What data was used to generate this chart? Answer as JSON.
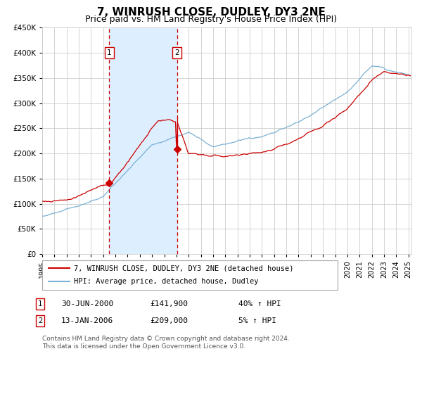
{
  "title": "7, WINRUSH CLOSE, DUDLEY, DY3 2NE",
  "subtitle": "Price paid vs. HM Land Registry's House Price Index (HPI)",
  "legend_line1": "7, WINRUSH CLOSE, DUDLEY, DY3 2NE (detached house)",
  "legend_line2": "HPI: Average price, detached house, Dudley",
  "annotation1_date": "30-JUN-2000",
  "annotation1_price": "£141,900",
  "annotation1_hpi": "40% ↑ HPI",
  "annotation2_date": "13-JAN-2006",
  "annotation2_price": "£209,000",
  "annotation2_hpi": "5% ↑ HPI",
  "footnote_line1": "Contains HM Land Registry data © Crown copyright and database right 2024.",
  "footnote_line2": "This data is licensed under the Open Government Licence v3.0.",
  "red_color": "#cc0000",
  "blue_color": "#7ab0d4",
  "shade_color": "#ddeeff",
  "grid_color": "#cccccc",
  "ylim": [
    0,
    450000
  ],
  "yticks": [
    0,
    50000,
    100000,
    150000,
    200000,
    250000,
    300000,
    350000,
    400000,
    450000
  ],
  "sale1_year": 2000.5,
  "sale2_year": 2006.04,
  "sale1_price": 141900,
  "sale2_price": 209000,
  "sale2_peak": 272000
}
